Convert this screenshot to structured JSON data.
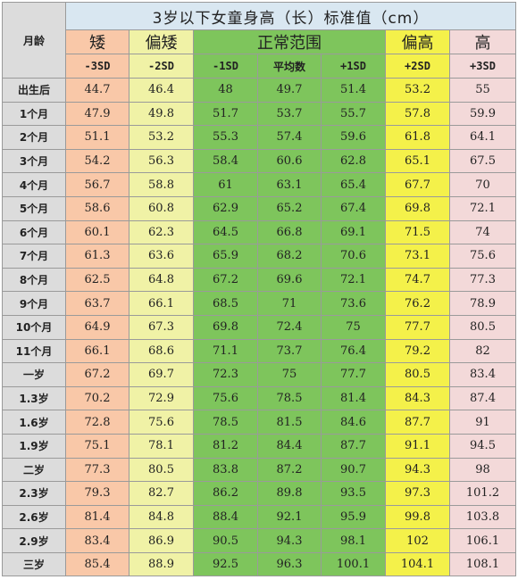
{
  "table": {
    "title": "3岁以下女童身高（长）标准值（cm）",
    "month_header": "月龄",
    "categories": {
      "short": "矮",
      "slightly_short": "偏矮",
      "normal": "正常范围",
      "slightly_tall": "偏高",
      "tall": "高"
    },
    "sd_headers": [
      "-3SD",
      "-2SD",
      "-1SD",
      "平均数",
      "+1SD",
      "+2SD",
      "+3SD"
    ],
    "rows": [
      {
        "age": "出生后",
        "values": [
          "44.7",
          "46.4",
          "48",
          "49.7",
          "51.4",
          "53.2",
          "55"
        ]
      },
      {
        "age": "1个月",
        "values": [
          "47.9",
          "49.8",
          "51.7",
          "53.7",
          "55.7",
          "57.8",
          "59.9"
        ]
      },
      {
        "age": "2个月",
        "values": [
          "51.1",
          "53.2",
          "55.3",
          "57.4",
          "59.6",
          "61.8",
          "64.1"
        ]
      },
      {
        "age": "3个月",
        "values": [
          "54.2",
          "56.3",
          "58.4",
          "60.6",
          "62.8",
          "65.1",
          "67.5"
        ]
      },
      {
        "age": "4个月",
        "values": [
          "56.7",
          "58.8",
          "61",
          "63.1",
          "65.4",
          "67.7",
          "70"
        ]
      },
      {
        "age": "5个月",
        "values": [
          "58.6",
          "60.8",
          "62.9",
          "65.2",
          "67.4",
          "69.8",
          "72.1"
        ]
      },
      {
        "age": "6个月",
        "values": [
          "60.1",
          "62.3",
          "64.5",
          "66.8",
          "69.1",
          "71.5",
          "74"
        ]
      },
      {
        "age": "7个月",
        "values": [
          "61.3",
          "63.6",
          "65.9",
          "68.2",
          "70.6",
          "73.1",
          "75.6"
        ]
      },
      {
        "age": "8个月",
        "values": [
          "62.5",
          "64.8",
          "67.2",
          "69.6",
          "72.1",
          "74.7",
          "77.3"
        ]
      },
      {
        "age": "9个月",
        "values": [
          "63.7",
          "66.1",
          "68.5",
          "71",
          "73.6",
          "76.2",
          "78.9"
        ]
      },
      {
        "age": "10个月",
        "values": [
          "64.9",
          "67.3",
          "69.8",
          "72.4",
          "75",
          "77.7",
          "80.5"
        ]
      },
      {
        "age": "11个月",
        "values": [
          "66.1",
          "68.6",
          "71.1",
          "73.7",
          "76.4",
          "79.2",
          "82"
        ]
      },
      {
        "age": "一岁",
        "values": [
          "67.2",
          "69.7",
          "72.3",
          "75",
          "77.7",
          "80.5",
          "83.4"
        ]
      },
      {
        "age": "1.3岁",
        "values": [
          "70.2",
          "72.9",
          "75.6",
          "78.5",
          "81.4",
          "84.3",
          "87.4"
        ]
      },
      {
        "age": "1.6岁",
        "values": [
          "72.8",
          "75.6",
          "78.5",
          "81.5",
          "84.6",
          "87.7",
          "91"
        ]
      },
      {
        "age": "1.9岁",
        "values": [
          "75.1",
          "78.1",
          "81.2",
          "84.4",
          "87.7",
          "91.1",
          "94.5"
        ]
      },
      {
        "age": "二岁",
        "values": [
          "77.3",
          "80.5",
          "83.8",
          "87.2",
          "90.7",
          "94.3",
          "98"
        ]
      },
      {
        "age": "2.3岁",
        "values": [
          "79.3",
          "82.7",
          "86.2",
          "89.8",
          "93.5",
          "97.3",
          "101.2"
        ]
      },
      {
        "age": "2.6岁",
        "values": [
          "81.4",
          "84.8",
          "88.4",
          "92.1",
          "95.9",
          "99.8",
          "103.8"
        ]
      },
      {
        "age": "2.9岁",
        "values": [
          "83.4",
          "86.9",
          "90.5",
          "94.3",
          "98.1",
          "102",
          "106.1"
        ]
      },
      {
        "age": "三岁",
        "values": [
          "85.4",
          "88.9",
          "92.5",
          "96.3",
          "100.1",
          "104.1",
          "108.1"
        ]
      }
    ]
  },
  "colors": {
    "short": "#f9c8a8",
    "slightly_short": "#f0f2a6",
    "normal": "#7ec55c",
    "slightly_tall": "#f4f14a",
    "tall": "#f3d9d9",
    "title_bg": "#d9e7f1",
    "month_bg": "#dcdcdc"
  }
}
